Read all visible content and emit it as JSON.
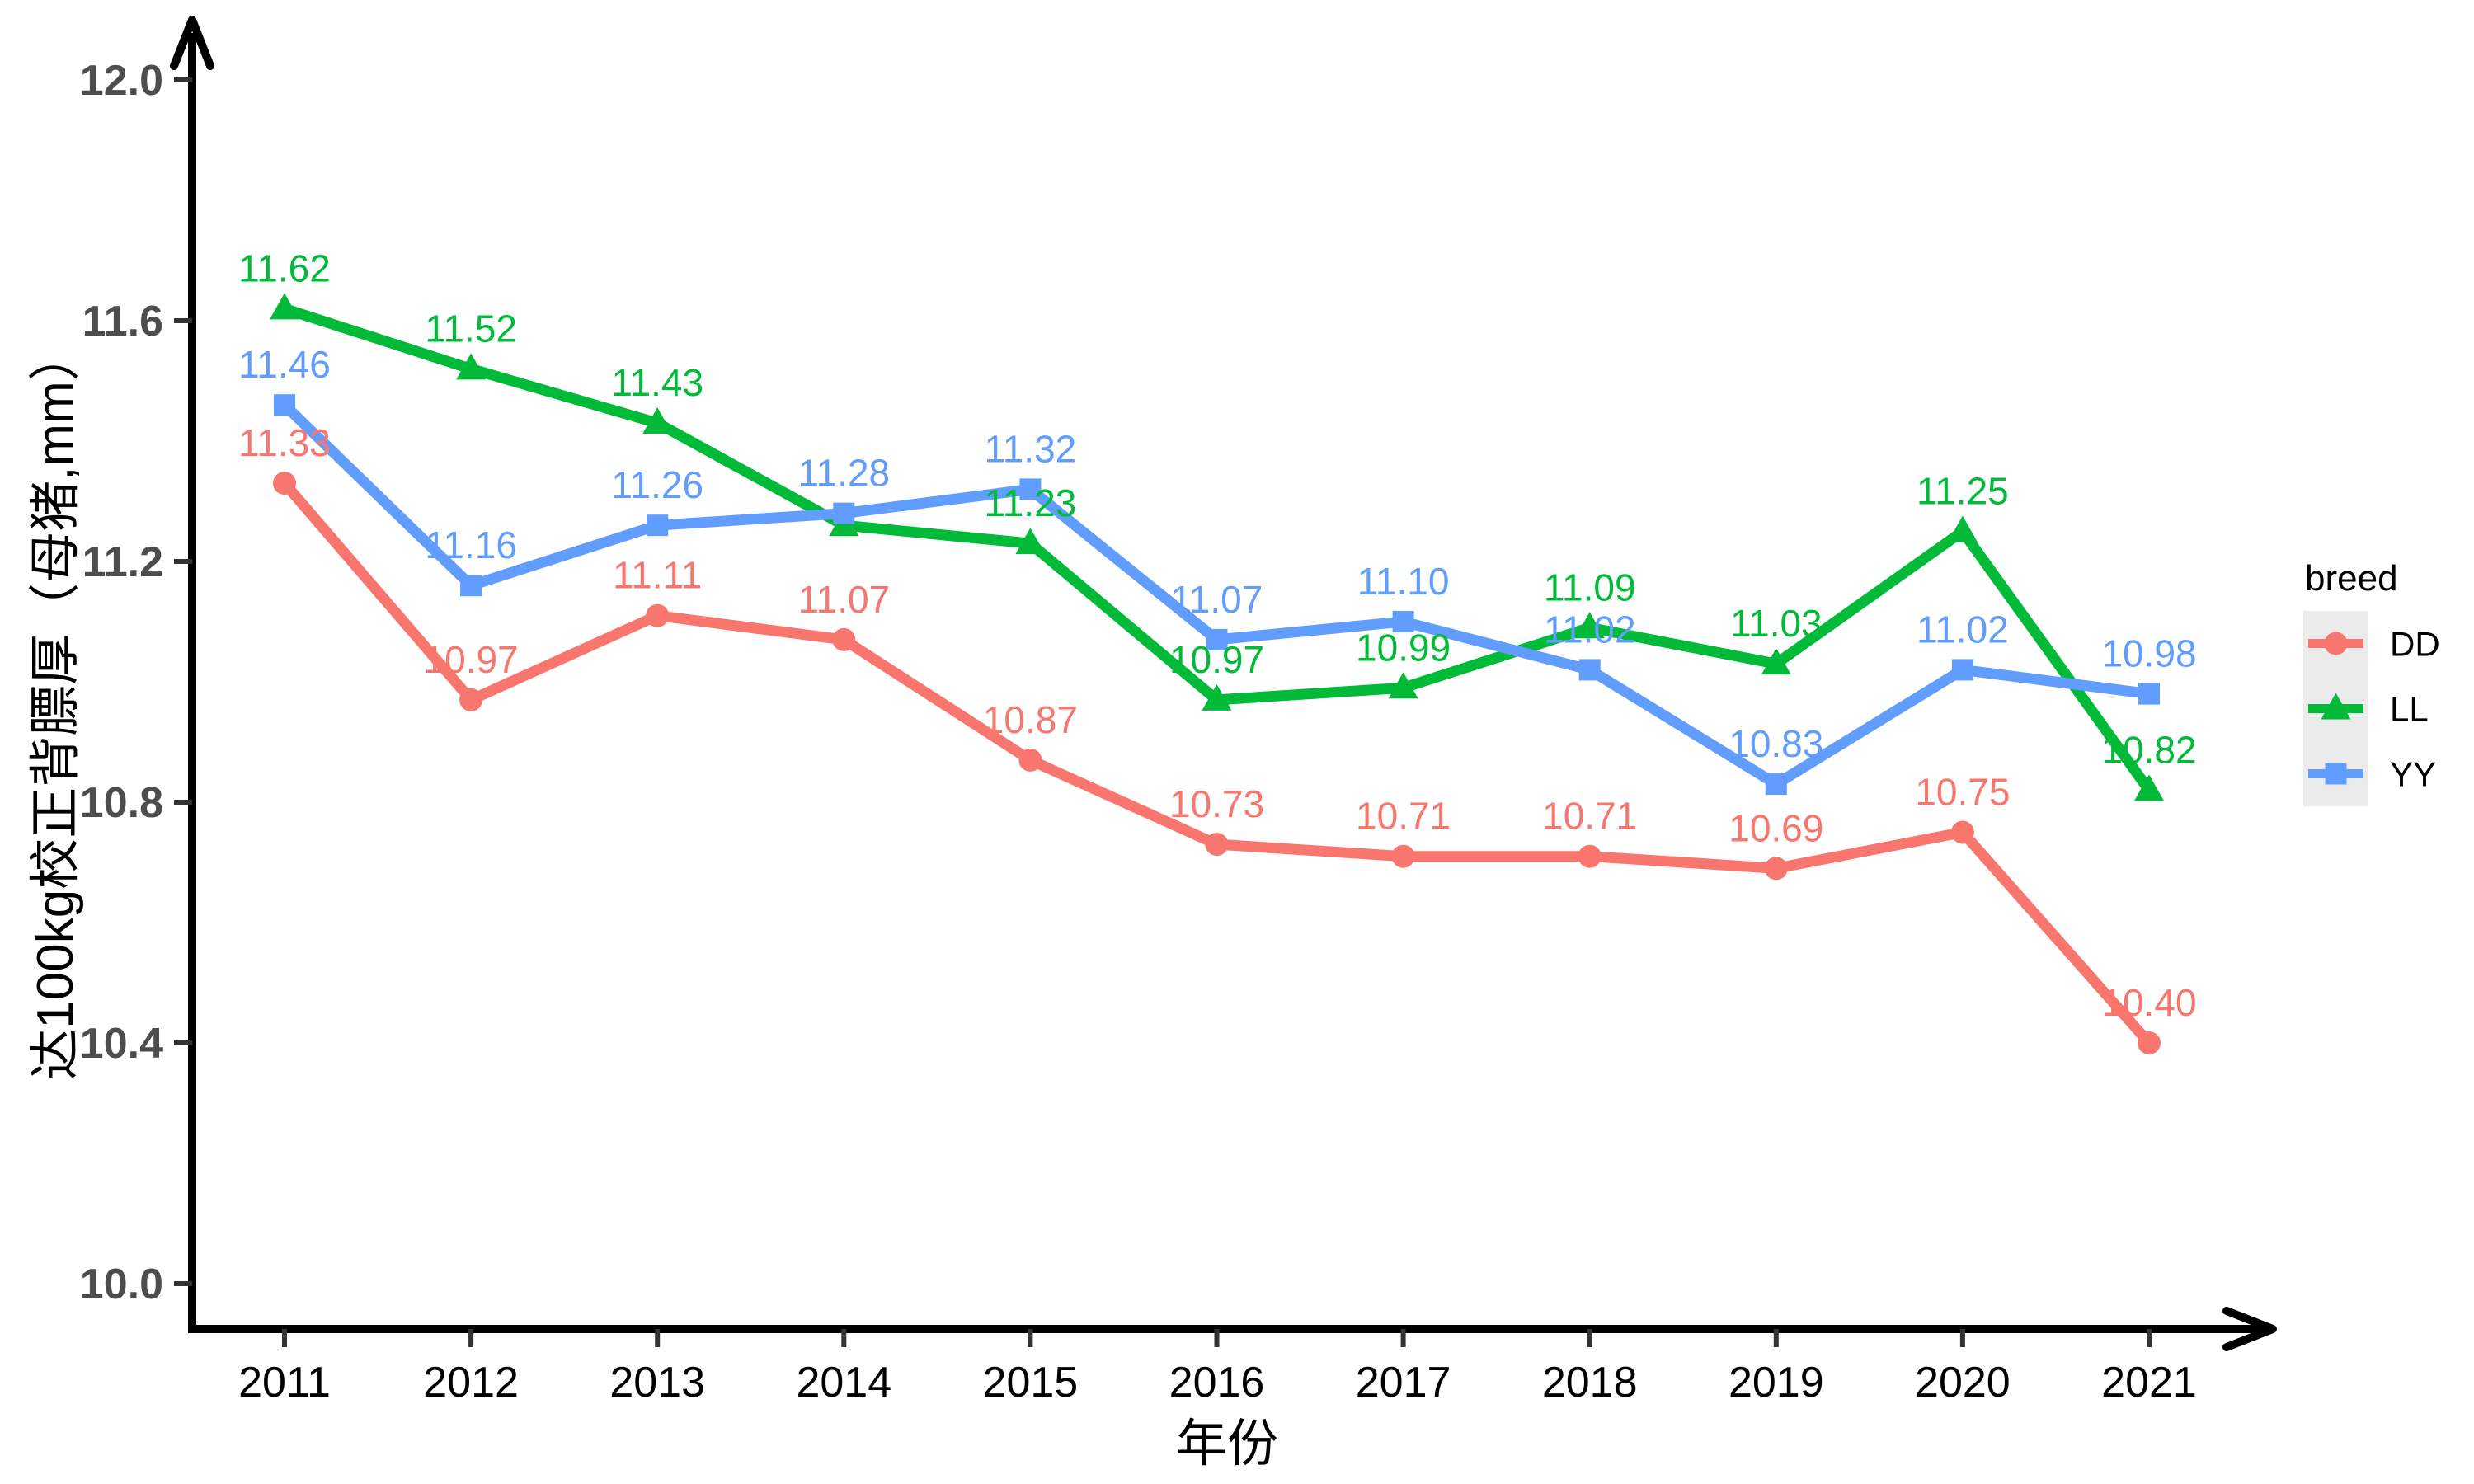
{
  "chart_data": {
    "type": "line",
    "title": "",
    "xlabel": "年份",
    "ylabel": "达100kg校正背膘厚（母猪,mm）",
    "x": [
      2011,
      2012,
      2013,
      2014,
      2015,
      2016,
      2017,
      2018,
      2019,
      2020,
      2021
    ],
    "y_axis": {
      "ticks": [
        12.0,
        11.6,
        11.2,
        10.8,
        10.4,
        10.0
      ],
      "tick_labels": [
        "12.0",
        "11.6",
        "11.2",
        "10.8",
        "10.4",
        "10.0"
      ],
      "range_shown": [
        9.94,
        12.1
      ],
      "grid": false
    },
    "legend": {
      "title": "breed",
      "position": "right",
      "key_background": "#EBEBEB",
      "entries": [
        "DD",
        "LL",
        "YY"
      ]
    },
    "series": [
      {
        "name": "DD",
        "color": "#F8766D",
        "marker": "circle",
        "values": [
          11.33,
          10.97,
          11.11,
          11.07,
          10.87,
          10.73,
          10.71,
          10.71,
          10.69,
          10.75,
          10.4
        ],
        "labels": [
          "11.33",
          "10.97",
          "11.11",
          "11.07",
          "10.87",
          "10.73",
          "10.71",
          "10.71",
          "10.69",
          "10.75",
          "10.40"
        ]
      },
      {
        "name": "LL",
        "color": "#00BA38",
        "marker": "triangle",
        "values": [
          11.62,
          11.52,
          11.43,
          11.26,
          11.23,
          10.97,
          10.99,
          11.09,
          11.03,
          11.25,
          10.82
        ],
        "labels": [
          "11.62",
          "11.52",
          "11.43",
          "",
          "11.23",
          "10.97",
          "10.99",
          "11.09",
          "11.03",
          "11.25",
          "10.82"
        ]
      },
      {
        "name": "YY",
        "color": "#619CFF",
        "marker": "square",
        "values": [
          11.46,
          11.16,
          11.26,
          11.28,
          11.32,
          11.07,
          11.1,
          11.02,
          10.83,
          11.02,
          10.98
        ],
        "labels": [
          "11.46",
          "11.16",
          "11.26",
          "11.28",
          "11.32",
          "11.07",
          "11.10",
          "11.02",
          "10.83",
          "11.02",
          "10.98"
        ]
      }
    ],
    "axis_color": "#000000",
    "tick_color": "#333333",
    "y_tick_label_color": "#4d4d4d",
    "x_tick_label_color": "#000000"
  }
}
